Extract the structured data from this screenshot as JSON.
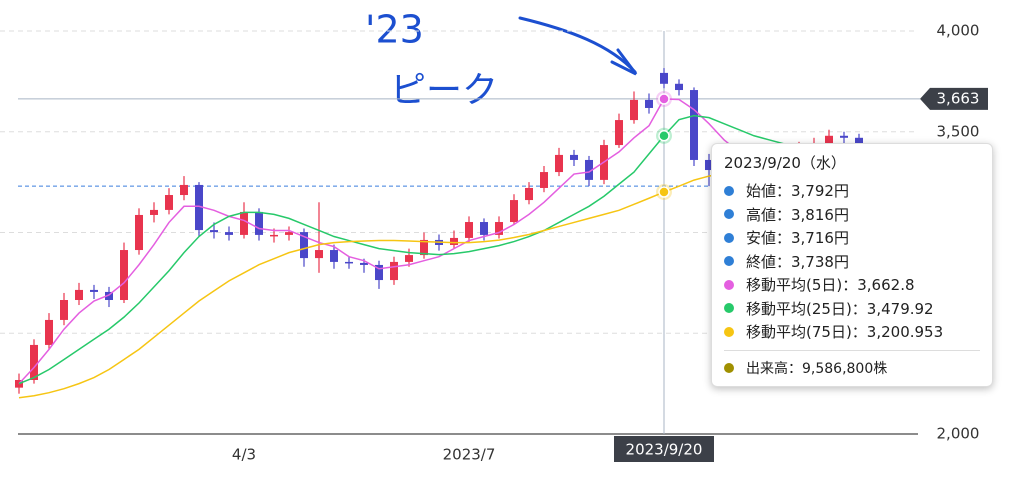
{
  "chart_data": {
    "type": "candlestick",
    "categories": [
      null,
      null,
      null,
      null,
      null,
      null,
      null,
      null,
      null,
      null,
      null,
      null,
      null,
      null,
      null,
      "4/3",
      null,
      null,
      null,
      null,
      null,
      null,
      null,
      null,
      null,
      null,
      null,
      null,
      null,
      null,
      "2023/7",
      null,
      null,
      null,
      null,
      null,
      null,
      null,
      null,
      null,
      null,
      null,
      null,
      "2023/9/20",
      null,
      null,
      null,
      null,
      null,
      null,
      null,
      null,
      null,
      null,
      null,
      null,
      null,
      null,
      null,
      null
    ],
    "open": [
      2230,
      2268,
      2442,
      2566,
      2665,
      2715,
      2705,
      2665,
      2913,
      3087,
      3112,
      3186,
      3236,
      3012,
      3002,
      2988,
      3102,
      2988,
      2988,
      3002,
      2873,
      2913,
      2854,
      2849,
      2839,
      2764,
      2854,
      2888,
      2963,
      2938,
      2973,
      3052,
      2988,
      3052,
      3161,
      3221,
      3300,
      3385,
      3360,
      3261,
      3434,
      3558,
      3658,
      3792,
      3738,
      3707,
      3360,
      3310,
      3290,
      3310,
      3330,
      3360,
      3400,
      3420,
      3440,
      3480,
      3470,
      3400,
      3330,
      3240
    ],
    "high": [
      2300,
      2470,
      2600,
      2700,
      2750,
      2740,
      2730,
      2950,
      3120,
      3150,
      3220,
      3280,
      3250,
      3050,
      3030,
      3150,
      3120,
      3020,
      3030,
      3020,
      3150,
      2940,
      2880,
      2870,
      2860,
      2880,
      2920,
      3000,
      2990,
      3010,
      3080,
      3070,
      3080,
      3190,
      3250,
      3330,
      3420,
      3410,
      3380,
      3460,
      3590,
      3700,
      3690,
      3816,
      3760,
      3720,
      3390,
      3330,
      3340,
      3360,
      3390,
      3430,
      3450,
      3470,
      3510,
      3500,
      3490,
      3420,
      3350,
      3260
    ],
    "low": [
      2200,
      2250,
      2420,
      2540,
      2640,
      2670,
      2630,
      2650,
      2890,
      3050,
      3090,
      3160,
      2980,
      2970,
      2960,
      2970,
      2960,
      2950,
      2960,
      2830,
      2800,
      2820,
      2820,
      2800,
      2720,
      2740,
      2830,
      2870,
      2910,
      2920,
      2950,
      2960,
      2970,
      3040,
      3140,
      3200,
      3280,
      3330,
      3230,
      3240,
      3420,
      3540,
      3590,
      3716,
      3680,
      3330,
      3230,
      3260,
      3270,
      3290,
      3310,
      3340,
      3380,
      3400,
      3420,
      3440,
      3380,
      3300,
      3210,
      3180
    ],
    "close": [
      2268,
      2442,
      2566,
      2665,
      2715,
      2705,
      2665,
      2913,
      3087,
      3112,
      3186,
      3236,
      3012,
      3002,
      2988,
      3102,
      2988,
      2988,
      3002,
      2873,
      2913,
      2854,
      2849,
      2839,
      2764,
      2854,
      2888,
      2963,
      2938,
      2973,
      3052,
      2988,
      3052,
      3161,
      3221,
      3300,
      3385,
      3360,
      3261,
      3434,
      3558,
      3658,
      3618,
      3738,
      3707,
      3360,
      3310,
      3290,
      3310,
      3330,
      3360,
      3400,
      3420,
      3440,
      3480,
      3470,
      3400,
      3330,
      3240,
      3211
    ],
    "up_color": "#e8344e",
    "down_color": "#4a47c9",
    "series": [
      {
        "color": "#e45fe0",
        "values": [
          2250,
          2330,
          2420,
          2520,
          2600,
          2660,
          2690,
          2750,
          2840,
          2940,
          3050,
          3130,
          3130,
          3110,
          3080,
          3060,
          3020,
          3010,
          3010,
          2980,
          2950,
          2930,
          2880,
          2860,
          2820,
          2830,
          2840,
          2860,
          2880,
          2920,
          2960,
          2980,
          3000,
          3040,
          3090,
          3150,
          3220,
          3290,
          3300,
          3350,
          3400,
          3470,
          3530,
          3662.8,
          3660,
          3610,
          3540,
          3460,
          3400,
          3320,
          3320,
          3340,
          3370,
          3390,
          3420,
          3440,
          3440,
          3420,
          3380,
          3330
        ]
      },
      {
        "color": "#27c96a",
        "values": [
          2250,
          2280,
          2320,
          2370,
          2420,
          2470,
          2520,
          2580,
          2650,
          2730,
          2810,
          2900,
          2980,
          3040,
          3080,
          3100,
          3100,
          3090,
          3070,
          3040,
          3010,
          2980,
          2960,
          2940,
          2920,
          2910,
          2900,
          2895,
          2890,
          2895,
          2905,
          2920,
          2935,
          2955,
          2980,
          3010,
          3050,
          3090,
          3130,
          3180,
          3240,
          3300,
          3390,
          3479.92,
          3560,
          3580,
          3570,
          3540,
          3510,
          3480,
          3460,
          3440,
          3430,
          3420,
          3410,
          3410,
          3400,
          3390,
          3380,
          3370
        ]
      },
      {
        "color": "#f6c513",
        "values": [
          2180,
          2190,
          2205,
          2225,
          2250,
          2280,
          2320,
          2370,
          2420,
          2480,
          2540,
          2600,
          2660,
          2710,
          2760,
          2800,
          2840,
          2870,
          2900,
          2920,
          2940,
          2950,
          2955,
          2958,
          2960,
          2960,
          2958,
          2955,
          2952,
          2950,
          2950,
          2955,
          2962,
          2975,
          2990,
          3010,
          3030,
          3050,
          3070,
          3090,
          3110,
          3140,
          3170,
          3200.953,
          3230,
          3260,
          3280,
          3295,
          3305,
          3315,
          3325,
          3335,
          3345,
          3355,
          3362,
          3368,
          3372,
          3375,
          3376,
          3376
        ]
      }
    ],
    "ylim": [
      2000,
      4000
    ],
    "yticks": [
      {
        "value": 2000,
        "label": "2,000"
      },
      2500,
      {
        "value": 3000,
        "label": "3,000"
      },
      {
        "value": 3500,
        "label": "3,500"
      },
      {
        "value": 4000,
        "label": "4,000"
      }
    ],
    "grid": true,
    "crosshair": {
      "value": 3663,
      "label": "3,663",
      "index": 43
    },
    "reference_line": {
      "value": 3230,
      "label": "3,230"
    },
    "annotations": [
      "'23",
      "ピーク"
    ],
    "tooltip": {
      "title": "2023/9/20（水）",
      "items": [
        {
          "text": "始値：3,792円",
          "color": "#2f7fd6"
        },
        {
          "text": "高値：3,816円",
          "color": "#2f7fd6"
        },
        {
          "text": "安値：3,716円",
          "color": "#2f7fd6"
        },
        {
          "text": "終値：3,738円",
          "color": "#2f7fd6"
        },
        {
          "text": "移動平均(5日)：3,662.8",
          "color": "#e45fe0"
        },
        {
          "text": "移動平均(25日)：3,479.92",
          "color": "#27c96a"
        },
        {
          "text": "移動平均(75日)：3,200.953",
          "color": "#f6c513"
        }
      ],
      "volume": {
        "text": "出来高：9,586,800株",
        "color": "#a09000"
      }
    }
  }
}
